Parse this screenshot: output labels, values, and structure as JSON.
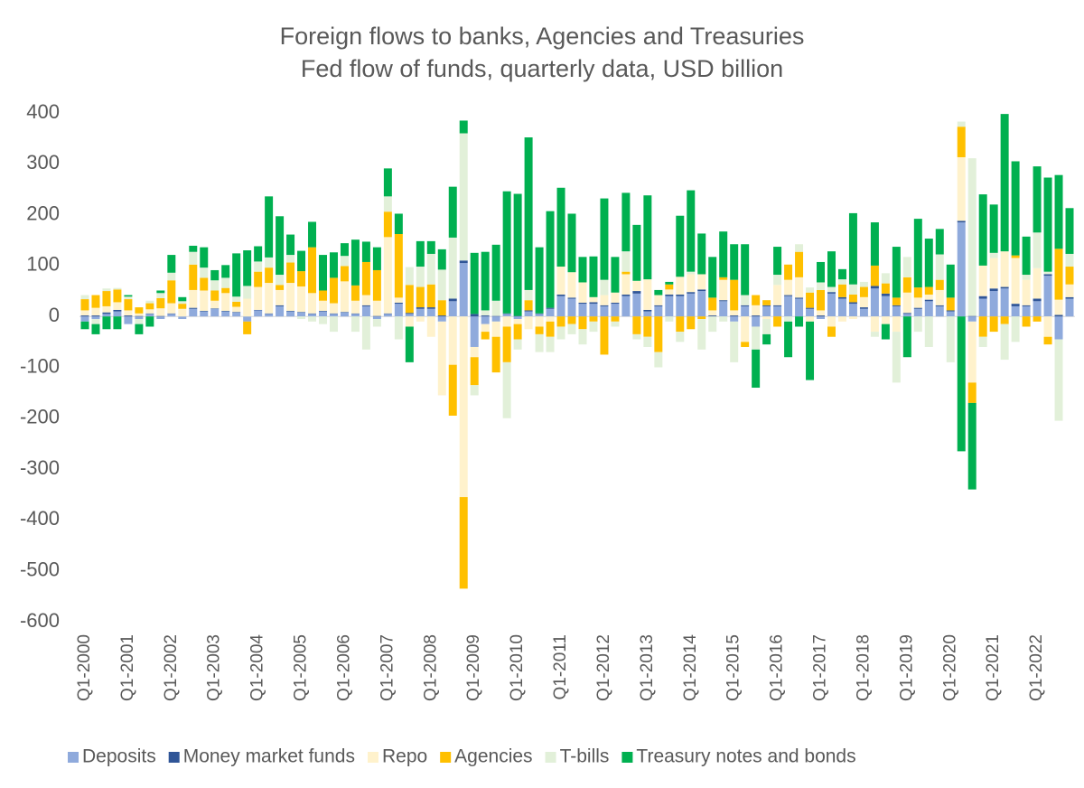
{
  "chart_data": {
    "type": "stacked_bar",
    "title": "Foreign flows to banks, Agencies and Treasuries",
    "subtitle": "Fed flow of funds, quarterly data, USD billion",
    "categories": [
      "Q1-2000",
      null,
      null,
      null,
      "Q1-2001",
      null,
      null,
      null,
      "Q1-2002",
      null,
      null,
      null,
      "Q1-2003",
      null,
      null,
      null,
      "Q1-2004",
      null,
      null,
      null,
      "Q1-2005",
      null,
      null,
      null,
      "Q1-2006",
      null,
      null,
      null,
      "Q1-2007",
      null,
      null,
      null,
      "Q1-2008",
      null,
      null,
      null,
      "Q1-2009",
      null,
      null,
      null,
      "Q1-2010",
      null,
      null,
      null,
      "Q1-2011",
      null,
      null,
      null,
      "Q1-2012",
      null,
      null,
      null,
      "Q1-2013",
      null,
      null,
      null,
      "Q1-2014",
      null,
      null,
      null,
      "Q1-2015",
      null,
      null,
      null,
      "Q1-2016",
      null,
      null,
      null,
      "Q1-2017",
      null,
      null,
      null,
      "Q1-2018",
      null,
      null,
      null,
      "Q1-2019",
      null,
      null,
      null,
      "Q1-2020",
      null,
      null,
      null,
      "Q1-2021",
      null,
      null,
      null,
      "Q1-2022",
      null,
      null,
      null
    ],
    "series": [
      {
        "name": "Deposits",
        "color": "#8faadc",
        "values": [
          -10,
          -5,
          5,
          10,
          -15,
          -5,
          5,
          -5,
          5,
          -5,
          15,
          10,
          15,
          10,
          8,
          -10,
          12,
          5,
          20,
          10,
          8,
          5,
          10,
          5,
          8,
          5,
          20,
          -5,
          5,
          25,
          5,
          15,
          15,
          -10,
          30,
          105,
          -60,
          -15,
          -10,
          5,
          -5,
          10,
          5,
          15,
          40,
          35,
          25,
          25,
          20,
          25,
          40,
          45,
          10,
          20,
          40,
          40,
          45,
          50,
          0,
          30,
          -10,
          20,
          -20,
          20,
          20,
          40,
          35,
          15,
          -5,
          45,
          35,
          25,
          15,
          55,
          40,
          20,
          5,
          15,
          30,
          20,
          10,
          185,
          -10,
          35,
          50,
          55,
          20,
          20,
          30,
          80,
          -45,
          35
        ]
      },
      {
        "name": "Money market funds",
        "color": "#2f5597",
        "values": [
          2,
          2,
          3,
          3,
          2,
          1,
          1,
          1,
          1,
          0,
          2,
          1,
          1,
          1,
          1,
          0,
          1,
          1,
          2,
          1,
          1,
          1,
          1,
          1,
          1,
          1,
          2,
          1,
          1,
          2,
          2,
          3,
          3,
          2,
          5,
          5,
          5,
          2,
          1,
          1,
          1,
          2,
          1,
          2,
          3,
          2,
          2,
          3,
          2,
          2,
          3,
          5,
          3,
          2,
          3,
          3,
          3,
          3,
          2,
          2,
          2,
          2,
          2,
          2,
          2,
          2,
          2,
          2,
          2,
          3,
          3,
          3,
          3,
          5,
          5,
          2,
          2,
          2,
          3,
          2,
          2,
          3,
          1,
          5,
          5,
          3,
          5,
          2,
          5,
          3,
          3,
          3
        ]
      },
      {
        "name": "Repo",
        "color": "#fff2cc",
        "values": [
          10,
          15,
          12,
          15,
          10,
          5,
          8,
          15,
          20,
          15,
          35,
          40,
          15,
          35,
          10,
          35,
          45,
          60,
          30,
          55,
          50,
          40,
          20,
          20,
          60,
          25,
          20,
          30,
          150,
          10,
          -20,
          -10,
          -40,
          -145,
          -95,
          -355,
          -20,
          -15,
          -30,
          -20,
          -10,
          -25,
          -20,
          -10,
          55,
          50,
          40,
          10,
          20,
          20,
          40,
          20,
          60,
          20,
          10,
          35,
          35,
          30,
          10,
          40,
          10,
          -50,
          20,
          -5,
          40,
          30,
          40,
          -10,
          10,
          -20,
          -10,
          -5,
          20,
          -30,
          -15,
          -30,
          40,
          20,
          10,
          30,
          0,
          125,
          -120,
          60,
          60,
          70,
          90,
          50,
          60,
          -40,
          30,
          25
        ]
      },
      {
        "name": "Agencies",
        "color": "#ffc000",
        "values": [
          22,
          25,
          30,
          25,
          22,
          12,
          12,
          20,
          45,
          10,
          50,
          25,
          20,
          10,
          10,
          -25,
          30,
          30,
          10,
          40,
          30,
          90,
          20,
          50,
          30,
          30,
          65,
          60,
          50,
          125,
          55,
          40,
          45,
          30,
          -100,
          -180,
          -55,
          -15,
          -70,
          -70,
          -30,
          20,
          -15,
          -30,
          -20,
          -15,
          -25,
          -10,
          -75,
          -10,
          5,
          -35,
          -40,
          -70,
          10,
          -30,
          -25,
          -5,
          25,
          5,
          60,
          -10,
          20,
          10,
          -20,
          30,
          50,
          30,
          40,
          -20,
          25,
          15,
          20,
          40,
          20,
          15,
          30,
          20,
          15,
          20,
          25,
          60,
          -40,
          -40,
          -30,
          -15,
          5,
          -20,
          -10,
          -15,
          100,
          35
        ]
      },
      {
        "name": "T-bills",
        "color": "#e2f0d9",
        "values": [
          8,
          -10,
          5,
          3,
          5,
          -10,
          5,
          10,
          15,
          5,
          25,
          20,
          20,
          20,
          10,
          25,
          20,
          20,
          20,
          15,
          -5,
          -10,
          -15,
          -30,
          20,
          -30,
          -65,
          -15,
          30,
          -45,
          35,
          40,
          60,
          60,
          120,
          250,
          -20,
          10,
          30,
          -110,
          -20,
          20,
          -35,
          -30,
          -25,
          -20,
          -30,
          -20,
          30,
          -10,
          40,
          -10,
          -20,
          -30,
          -10,
          -20,
          5,
          -60,
          -30,
          -10,
          -80,
          20,
          -45,
          -30,
          20,
          -10,
          15,
          10,
          15,
          10,
          10,
          20,
          10,
          -10,
          20,
          -100,
          40,
          -30,
          -60,
          50,
          -90,
          10,
          310,
          -20,
          10,
          -70,
          -50,
          10,
          70,
          5,
          -160,
          25
        ]
      },
      {
        "name": "Treasury notes and bonds",
        "color": "#00b050",
        "values": [
          -15,
          -20,
          -25,
          -25,
          3,
          -20,
          -20,
          5,
          35,
          8,
          12,
          40,
          20,
          25,
          85,
          70,
          30,
          120,
          115,
          40,
          40,
          50,
          70,
          50,
          25,
          90,
          40,
          45,
          55,
          40,
          -70,
          50,
          25,
          40,
          100,
          25,
          120,
          115,
          110,
          240,
          240,
          300,
          130,
          190,
          155,
          115,
          50,
          80,
          160,
          70,
          115,
          110,
          165,
          10,
          5,
          120,
          160,
          80,
          80,
          90,
          70,
          100,
          -75,
          -20,
          55,
          -70,
          -20,
          -115,
          40,
          70,
          20,
          140,
          0,
          85,
          -30,
          100,
          -80,
          135,
          95,
          50,
          65,
          -265,
          -170,
          140,
          95,
          270,
          185,
          75,
          130,
          185,
          145,
          90
        ]
      }
    ],
    "ylim": [
      -600,
      400
    ],
    "yticks": [
      400,
      300,
      200,
      100,
      0,
      -100,
      -200,
      -300,
      -400,
      -500,
      -600
    ],
    "grid": false,
    "legend": "bottom"
  }
}
